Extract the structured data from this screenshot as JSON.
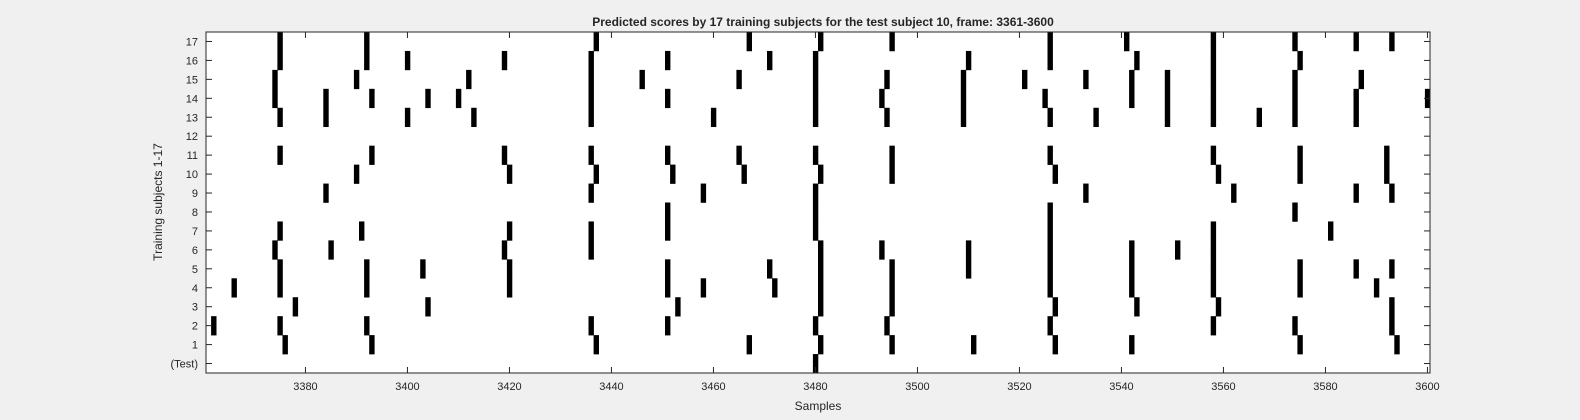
{
  "chart_data": {
    "type": "heatmap",
    "title": "Predicted scores by 17 training subjects for the test subject 10, frame: 3361-3600",
    "xlabel": "Samples",
    "ylabel": "Training subjects 1-17",
    "xlim": [
      3361,
      3600
    ],
    "x_ticks": [
      "3380",
      "3400",
      "3420",
      "3440",
      "3460",
      "3480",
      "3500",
      "3520",
      "3540",
      "3560",
      "3580",
      "3600"
    ],
    "y_ticks": [
      "(Test)",
      "1",
      "2",
      "3",
      "4",
      "5",
      "6",
      "7",
      "8",
      "9",
      "10",
      "11",
      "12",
      "13",
      "14",
      "15",
      "16",
      "17"
    ],
    "colors": {
      "mark": "#000000",
      "background": "#ffffff"
    },
    "rows": [
      {
        "label": "(Test)",
        "samples": [
          3480
        ]
      },
      {
        "label": "1",
        "samples": [
          3376,
          3393,
          3437,
          3467,
          3481,
          3495,
          3511,
          3527,
          3542,
          3575,
          3594
        ]
      },
      {
        "label": "2",
        "samples": [
          3362,
          3375,
          3392,
          3436,
          3451,
          3480,
          3494,
          3526,
          3558,
          3574,
          3593
        ]
      },
      {
        "label": "3",
        "samples": [
          3378,
          3404,
          3453,
          3481,
          3495,
          3527,
          3543,
          3559,
          3593
        ]
      },
      {
        "label": "4",
        "samples": [
          3366,
          3375,
          3392,
          3420,
          3451,
          3458,
          3472,
          3481,
          3495,
          3526,
          3542,
          3558,
          3575,
          3590
        ]
      },
      {
        "label": "5",
        "samples": [
          3375,
          3392,
          3403,
          3420,
          3451,
          3471,
          3481,
          3495,
          3510,
          3526,
          3542,
          3558,
          3575,
          3586,
          3593
        ]
      },
      {
        "label": "6",
        "samples": [
          3374,
          3385,
          3419,
          3436,
          3481,
          3493,
          3510,
          3526,
          3542,
          3551,
          3558
        ]
      },
      {
        "label": "7",
        "samples": [
          3375,
          3391,
          3420,
          3436,
          3451,
          3480,
          3526,
          3558,
          3581
        ]
      },
      {
        "label": "8",
        "samples": [
          3451,
          3480,
          3526,
          3574
        ]
      },
      {
        "label": "9",
        "samples": [
          3384,
          3436,
          3458,
          3480,
          3533,
          3562,
          3586,
          3593
        ]
      },
      {
        "label": "10",
        "samples": [
          3390,
          3420,
          3437,
          3452,
          3466,
          3481,
          3495,
          3527,
          3559,
          3575,
          3592
        ]
      },
      {
        "label": "11",
        "samples": [
          3375,
          3393,
          3419,
          3436,
          3451,
          3465,
          3480,
          3495,
          3526,
          3558,
          3575,
          3592
        ]
      },
      {
        "label": "12",
        "samples": []
      },
      {
        "label": "13",
        "samples": [
          3375,
          3384,
          3400,
          3413,
          3436,
          3460,
          3480,
          3494,
          3509,
          3526,
          3535,
          3549,
          3558,
          3567,
          3574,
          3586
        ]
      },
      {
        "label": "14",
        "samples": [
          3374,
          3384,
          3393,
          3404,
          3410,
          3436,
          3451,
          3480,
          3493,
          3509,
          3525,
          3542,
          3549,
          3558,
          3574,
          3586,
          3600
        ]
      },
      {
        "label": "15",
        "samples": [
          3374,
          3390,
          3412,
          3436,
          3446,
          3465,
          3480,
          3494,
          3509,
          3521,
          3533,
          3542,
          3549,
          3558,
          3574,
          3587
        ]
      },
      {
        "label": "16",
        "samples": [
          3375,
          3392,
          3400,
          3419,
          3436,
          3451,
          3471,
          3480,
          3510,
          3526,
          3543,
          3558,
          3575
        ]
      },
      {
        "label": "17",
        "samples": [
          3375,
          3392,
          3437,
          3467,
          3481,
          3495,
          3526,
          3541,
          3558,
          3574,
          3586,
          3593
        ]
      }
    ]
  }
}
